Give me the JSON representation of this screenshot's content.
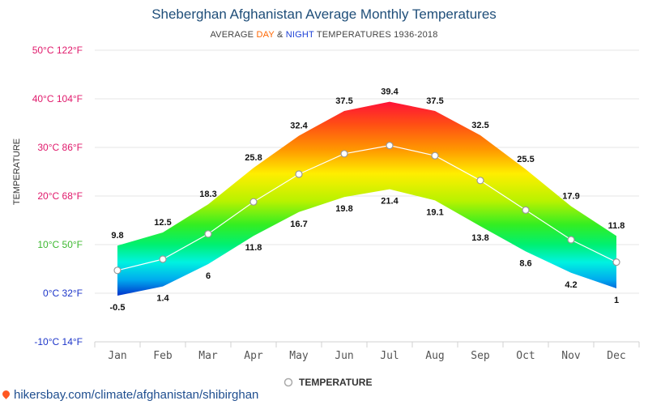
{
  "title": "Sheberghan Afghanistan Average Monthly Temperatures",
  "subtitle": {
    "prefix": "AVERAGE ",
    "day": "DAY",
    "amp": " & ",
    "night": "NIGHT",
    "suffix": " TEMPERATURES 1936-2018"
  },
  "source": "hikersbay.com/climate/afghanistan/shibirghan",
  "colors": {
    "title": "#1f4e79",
    "day": "#ff6600",
    "night": "#1a3fd6",
    "grid": "#e6e6e6",
    "average_line": "#ffffff",
    "tick_hot": "#e0196b",
    "tick_warm": "#e0196b",
    "tick_mild": "#3cb82f",
    "tick_cold": "#1c35c9"
  },
  "chart_data": {
    "type": "area",
    "title": "Sheberghan Afghanistan Average Monthly Temperatures",
    "xlabel": "",
    "ylabel": "TEMPERATURE",
    "categories": [
      "Jan",
      "Feb",
      "Mar",
      "Apr",
      "May",
      "Jun",
      "Jul",
      "Aug",
      "Sep",
      "Oct",
      "Nov",
      "Dec"
    ],
    "series": [
      {
        "name": "Day",
        "values": [
          9.8,
          12.5,
          18.3,
          25.8,
          32.4,
          37.5,
          39.4,
          37.5,
          32.5,
          25.5,
          17.9,
          11.8
        ]
      },
      {
        "name": "Night",
        "values": [
          -0.5,
          1.4,
          6,
          11.8,
          16.7,
          19.8,
          21.4,
          19.1,
          13.8,
          8.6,
          4.2,
          1
        ]
      },
      {
        "name": "TEMPERATURE",
        "values": [
          4.7,
          7,
          12.2,
          18.8,
          24.5,
          28.7,
          30.4,
          28.3,
          23.2,
          17.1,
          11,
          6.4
        ]
      }
    ],
    "ylim": [
      -10,
      50
    ],
    "yticks": [
      {
        "value": 50,
        "label": "50°C 122°F"
      },
      {
        "value": 40,
        "label": "40°C 104°F"
      },
      {
        "value": 30,
        "label": "30°C 86°F"
      },
      {
        "value": 20,
        "label": "20°C 68°F"
      },
      {
        "value": 10,
        "label": "10°C 50°F"
      },
      {
        "value": 0,
        "label": "0°C 32°F"
      },
      {
        "value": -10,
        "label": "-10°C 14°F"
      }
    ],
    "legend": [
      "TEMPERATURE"
    ],
    "legend_position": "bottom-center",
    "grid": true
  }
}
